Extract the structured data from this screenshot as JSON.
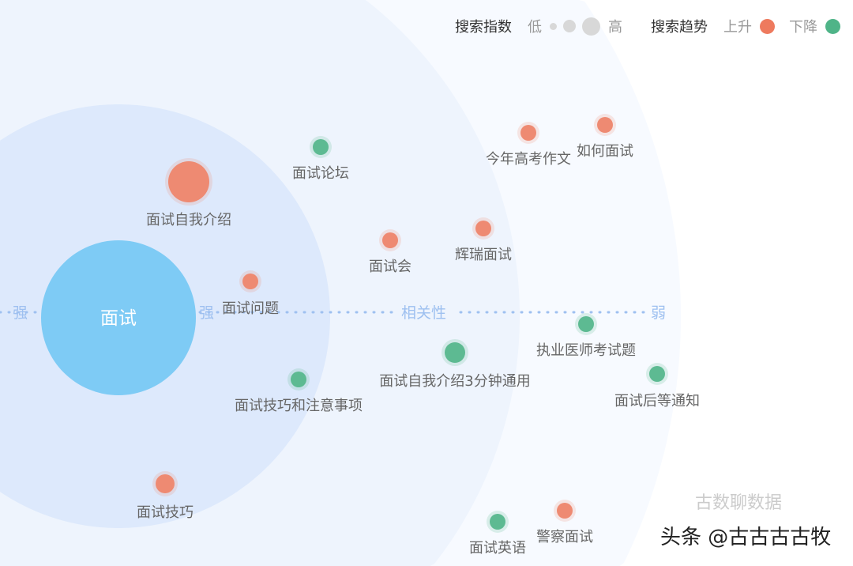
{
  "legend": {
    "index_title": "搜索指数",
    "low": "低",
    "high": "高",
    "trend_title": "搜索趋势",
    "up": "上升",
    "down": "下降"
  },
  "colors": {
    "up": "#ee8a72",
    "down": "#5dba92",
    "center": "#7ecbf5",
    "axis": "#9ec0f0"
  },
  "watermark": {
    "line1": "古数聊数据",
    "line2": "头条 @古古古古牧"
  },
  "chart_data": {
    "type": "bubble-relation",
    "center": {
      "label": "面试"
    },
    "axis": {
      "label": "相关性",
      "strong": "强",
      "weak": "弱"
    },
    "nodes": [
      {
        "label": "面试自我介绍",
        "trend": "up",
        "size": "large"
      },
      {
        "label": "面试论坛",
        "trend": "down",
        "size": "small"
      },
      {
        "label": "今年高考作文",
        "trend": "up",
        "size": "small"
      },
      {
        "label": "如何面试",
        "trend": "up",
        "size": "small"
      },
      {
        "label": "面试会",
        "trend": "up",
        "size": "small"
      },
      {
        "label": "辉瑞面试",
        "trend": "up",
        "size": "small"
      },
      {
        "label": "面试问题",
        "trend": "up",
        "size": "small"
      },
      {
        "label": "执业医师考试题",
        "trend": "down",
        "size": "small"
      },
      {
        "label": "面试自我介绍3分钟通用",
        "trend": "down",
        "size": "medium"
      },
      {
        "label": "面试后等通知",
        "trend": "down",
        "size": "small"
      },
      {
        "label": "面试技巧和注意事项",
        "trend": "down",
        "size": "small"
      },
      {
        "label": "面试技巧",
        "trend": "up",
        "size": "medium"
      },
      {
        "label": "面试英语",
        "trend": "down",
        "size": "small"
      },
      {
        "label": "警察面试",
        "trend": "up",
        "size": "small"
      }
    ]
  }
}
